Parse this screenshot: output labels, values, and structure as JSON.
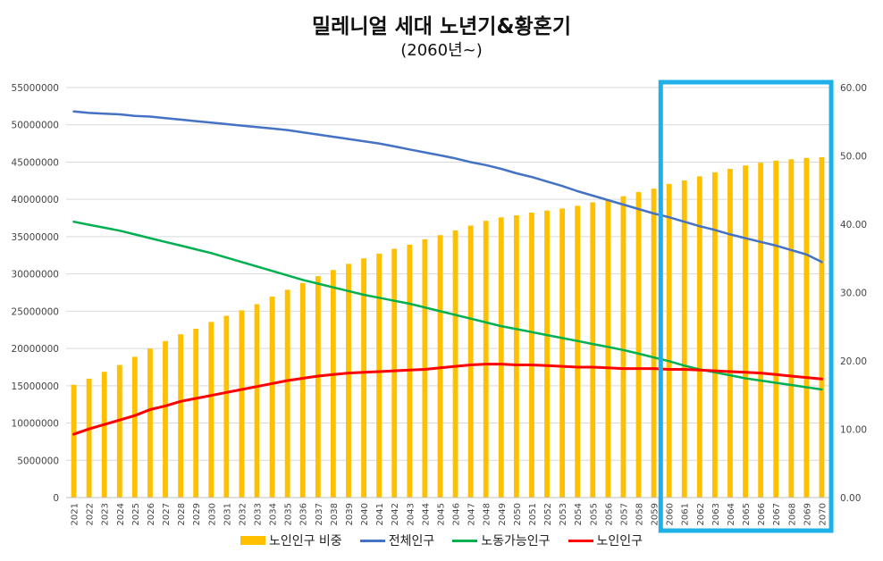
{
  "chart_data": {
    "type": "bar+line",
    "title": "밀레니얼 세대 노년기&황혼기",
    "subtitle": "(2060년~)",
    "categories": [
      "2021",
      "2022",
      "2023",
      "2024",
      "2025",
      "2026",
      "2027",
      "2028",
      "2029",
      "2030",
      "2031",
      "2032",
      "2033",
      "2034",
      "2035",
      "2036",
      "2037",
      "2038",
      "2039",
      "2040",
      "2041",
      "2042",
      "2043",
      "2044",
      "2045",
      "2046",
      "2047",
      "2048",
      "2049",
      "2050",
      "2051",
      "2052",
      "2053",
      "2054",
      "2055",
      "2056",
      "2057",
      "2058",
      "2059",
      "2060",
      "2061",
      "2062",
      "2063",
      "2064",
      "2065",
      "2066",
      "2067",
      "2068",
      "2069",
      "2070"
    ],
    "y_left": {
      "min": 0,
      "max": 55000000,
      "ticks": [
        "0",
        "5000000",
        "10000000",
        "15000000",
        "20000000",
        "25000000",
        "30000000",
        "35000000",
        "40000000",
        "45000000",
        "50000000",
        "55000000"
      ]
    },
    "y_right": {
      "min": 0,
      "max": 60,
      "ticks": [
        "0.00",
        "10.00",
        "20.00",
        "30.00",
        "40.00",
        "50.00",
        "60.00"
      ]
    },
    "series": [
      {
        "name": "노인인구 비중",
        "kind": "bar",
        "axis": "right",
        "color": "#FFC000",
        "values": [
          16.5,
          17.4,
          18.4,
          19.4,
          20.6,
          21.8,
          22.9,
          23.9,
          24.7,
          25.7,
          26.6,
          27.4,
          28.3,
          29.4,
          30.4,
          31.4,
          32.4,
          33.3,
          34.2,
          35.0,
          35.7,
          36.4,
          37.0,
          37.8,
          38.4,
          39.1,
          39.8,
          40.5,
          41.0,
          41.3,
          41.7,
          42.0,
          42.3,
          42.7,
          43.2,
          43.6,
          44.1,
          44.7,
          45.2,
          45.9,
          46.4,
          47.0,
          47.6,
          48.1,
          48.6,
          49.0,
          49.3,
          49.5,
          49.7,
          49.8
        ]
      },
      {
        "name": "전체인구",
        "kind": "line",
        "axis": "left",
        "color": "#4472C4",
        "values": [
          51800000,
          51600000,
          51500000,
          51400000,
          51200000,
          51100000,
          50900000,
          50700000,
          50500000,
          50300000,
          50100000,
          49900000,
          49700000,
          49500000,
          49300000,
          49000000,
          48700000,
          48400000,
          48100000,
          47800000,
          47500000,
          47100000,
          46700000,
          46300000,
          45900000,
          45500000,
          45000000,
          44600000,
          44100000,
          43500000,
          43000000,
          42400000,
          41800000,
          41100000,
          40500000,
          39900000,
          39300000,
          38700000,
          38100000,
          37600000,
          37000000,
          36400000,
          35900000,
          35300000,
          34800000,
          34300000,
          33800000,
          33200000,
          32600000,
          31600000
        ]
      },
      {
        "name": "노동가능인구",
        "kind": "line",
        "axis": "left",
        "color": "#00B050",
        "values": [
          37000000,
          36600000,
          36200000,
          35800000,
          35300000,
          34800000,
          34300000,
          33800000,
          33300000,
          32800000,
          32200000,
          31600000,
          31000000,
          30400000,
          29800000,
          29200000,
          28700000,
          28200000,
          27700000,
          27200000,
          26800000,
          26400000,
          26000000,
          25500000,
          25000000,
          24500000,
          24000000,
          23500000,
          23000000,
          22600000,
          22200000,
          21800000,
          21400000,
          21000000,
          20600000,
          20200000,
          19800000,
          19300000,
          18800000,
          18300000,
          17700000,
          17200000,
          16800000,
          16400000,
          16000000,
          15700000,
          15400000,
          15100000,
          14800000,
          14500000
        ]
      },
      {
        "name": "노인인구",
        "kind": "line",
        "axis": "left",
        "color": "#FF0000",
        "values": [
          8500000,
          9200000,
          9800000,
          10400000,
          11000000,
          11800000,
          12300000,
          12900000,
          13300000,
          13700000,
          14100000,
          14500000,
          14900000,
          15300000,
          15700000,
          16000000,
          16300000,
          16500000,
          16700000,
          16800000,
          16900000,
          17000000,
          17100000,
          17200000,
          17400000,
          17600000,
          17800000,
          17900000,
          17900000,
          17800000,
          17800000,
          17700000,
          17600000,
          17500000,
          17500000,
          17400000,
          17300000,
          17300000,
          17300000,
          17200000,
          17200000,
          17100000,
          17000000,
          16900000,
          16800000,
          16700000,
          16500000,
          16300000,
          16100000,
          15900000
        ]
      }
    ],
    "highlight": {
      "from": "2060",
      "to": "2070",
      "color": "#1EB0E6"
    },
    "grid": true,
    "legend_position": "bottom"
  }
}
